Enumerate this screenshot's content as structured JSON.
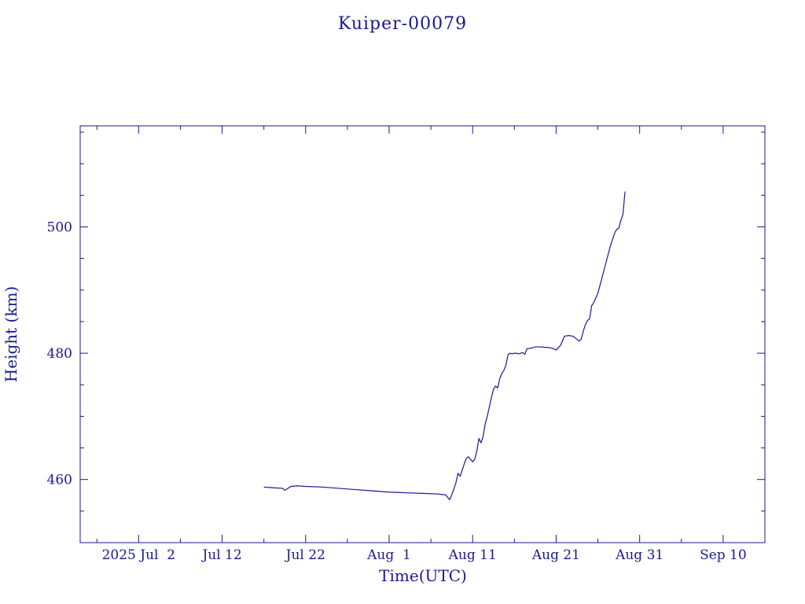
{
  "chart_data": {
    "type": "line",
    "title": "Kuiper-00079",
    "xlabel": "Time(UTC)",
    "ylabel": "Height (km)",
    "xlim": [
      "2025-06-25",
      "2025-09-15"
    ],
    "ylim": [
      450,
      516
    ],
    "x_ticks": [
      {
        "date": "2025-07-02",
        "label": "2025 Jul  2"
      },
      {
        "date": "2025-07-12",
        "label": "Jul 12"
      },
      {
        "date": "2025-07-22",
        "label": "Jul 22"
      },
      {
        "date": "2025-08-01",
        "label": "Aug  1"
      },
      {
        "date": "2025-08-11",
        "label": "Aug 11"
      },
      {
        "date": "2025-08-21",
        "label": "Aug 21"
      },
      {
        "date": "2025-08-31",
        "label": "Aug 31"
      },
      {
        "date": "2025-09-10",
        "label": "Sep 10"
      }
    ],
    "y_ticks": [
      460,
      480,
      500
    ],
    "y_minor_step": 5,
    "x_minor_step_days": 5,
    "grid": false,
    "color": "#1a1a8c",
    "series": [
      {
        "x": [
          "2025-07-17T00:00",
          "2025-07-18T00:00",
          "2025-07-19T06:00",
          "2025-07-19T12:00",
          "2025-07-20T06:00",
          "2025-07-21T00:00",
          "2025-07-22T00:00",
          "2025-07-24T00:00",
          "2025-07-26T00:00",
          "2025-07-28T00:00",
          "2025-07-30T00:00",
          "2025-08-01T00:00",
          "2025-08-03T00:00",
          "2025-08-05T00:00",
          "2025-08-07T00:00",
          "2025-08-07T12:00",
          "2025-08-07T18:00",
          "2025-08-08T06:00",
          "2025-08-08T12:00",
          "2025-08-08T18:00",
          "2025-08-09T00:00",
          "2025-08-09T06:00",
          "2025-08-09T12:00",
          "2025-08-10T00:00",
          "2025-08-10T06:00",
          "2025-08-10T12:00",
          "2025-08-10T18:00",
          "2025-08-11T00:00",
          "2025-08-11T06:00",
          "2025-08-11T12:00",
          "2025-08-11T18:00",
          "2025-08-12T00:00",
          "2025-08-12T06:00",
          "2025-08-12T12:00",
          "2025-08-12T18:00",
          "2025-08-13T00:00",
          "2025-08-13T06:00",
          "2025-08-13T12:00",
          "2025-08-13T18:00",
          "2025-08-14T00:00",
          "2025-08-14T06:00",
          "2025-08-14T12:00",
          "2025-08-14T18:00",
          "2025-08-15T00:00",
          "2025-08-15T06:00",
          "2025-08-15T12:00",
          "2025-08-15T18:00",
          "2025-08-16T00:00",
          "2025-08-16T06:00",
          "2025-08-16T12:00",
          "2025-08-17T00:00",
          "2025-08-17T06:00",
          "2025-08-17T12:00",
          "2025-08-18T00:00",
          "2025-08-18T12:00",
          "2025-08-19T00:00",
          "2025-08-20T00:00",
          "2025-08-20T12:00",
          "2025-08-21T00:00",
          "2025-08-21T12:00",
          "2025-08-22T00:00",
          "2025-08-22T12:00",
          "2025-08-23T00:00",
          "2025-08-23T12:00",
          "2025-08-23T18:00",
          "2025-08-24T00:00",
          "2025-08-24T06:00",
          "2025-08-24T12:00",
          "2025-08-24T18:00",
          "2025-08-25T00:00",
          "2025-08-25T06:00",
          "2025-08-25T12:00",
          "2025-08-26T00:00",
          "2025-08-26T12:00",
          "2025-08-27T00:00",
          "2025-08-27T12:00",
          "2025-08-28T00:00",
          "2025-08-28T06:00",
          "2025-08-28T12:00",
          "2025-08-28T18:00",
          "2025-08-29T00:00",
          "2025-08-29T06:00"
        ],
        "y": [
          458.8,
          458.7,
          458.6,
          458.3,
          458.9,
          459.0,
          458.9,
          458.8,
          458.6,
          458.4,
          458.2,
          458.0,
          457.9,
          457.8,
          457.7,
          457.6,
          457.6,
          456.8,
          457.6,
          458.5,
          459.5,
          461.0,
          460.5,
          462.5,
          463.4,
          463.6,
          463.2,
          462.8,
          463.2,
          464.5,
          466.5,
          465.8,
          466.8,
          468.8,
          470.0,
          471.5,
          473.0,
          474.3,
          474.8,
          474.5,
          476.0,
          476.8,
          477.3,
          478.2,
          479.8,
          480.0,
          479.9,
          480.0,
          480.0,
          479.9,
          480.1,
          479.8,
          480.7,
          480.8,
          481.0,
          481.0,
          480.9,
          480.8,
          480.5,
          481.2,
          482.7,
          482.8,
          482.7,
          482.2,
          481.9,
          482.2,
          483.5,
          484.5,
          485.2,
          485.4,
          487.5,
          488.0,
          489.5,
          492.0,
          494.5,
          497.0,
          499.0,
          499.6,
          499.8,
          501.0,
          502.0,
          505.6
        ]
      }
    ]
  }
}
